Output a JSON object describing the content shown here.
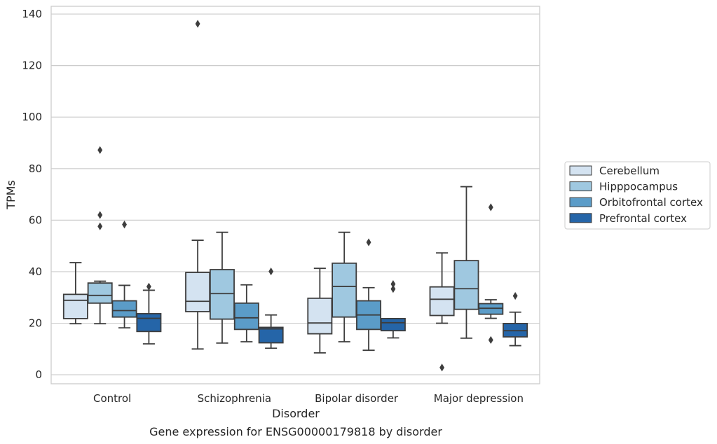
{
  "chart_data": {
    "type": "box",
    "xlabel": "Disorder",
    "ylabel": "TPMs",
    "caption": "Gene expression for ENSG00000179818 by disorder",
    "ylim": [
      -3.5,
      143
    ],
    "yticks": [
      0,
      20,
      40,
      60,
      80,
      100,
      120,
      140
    ],
    "grid": "horizontal",
    "legend_position": "right",
    "categories": [
      "Control",
      "Schizophrenia",
      "Bipolar disorder",
      "Major depression"
    ],
    "series": [
      {
        "name": "Cerebellum",
        "color": "#d4e3f1",
        "boxes": [
          {
            "whislo": 19.8,
            "q1": 21.8,
            "med": 28.9,
            "q3": 31.2,
            "whishi": 43.5,
            "fliers": []
          },
          {
            "whislo": 10.0,
            "q1": 24.5,
            "med": 28.5,
            "q3": 39.7,
            "whishi": 52.2,
            "fliers": [
              136.2
            ]
          },
          {
            "whislo": 8.5,
            "q1": 15.9,
            "med": 20.1,
            "q3": 29.7,
            "whishi": 41.3,
            "fliers": []
          },
          {
            "whislo": 20.0,
            "q1": 23.0,
            "med": 29.3,
            "q3": 34.1,
            "whishi": 47.3,
            "fliers": [
              2.8
            ]
          }
        ]
      },
      {
        "name": "Hipppocampus",
        "color": "#9fc8e0",
        "boxes": [
          {
            "whislo": 19.8,
            "q1": 27.8,
            "med": 30.8,
            "q3": 35.6,
            "whishi": 36.3,
            "fliers": [
              87.2,
              62.0,
              57.6
            ]
          },
          {
            "whislo": 12.3,
            "q1": 21.6,
            "med": 31.5,
            "q3": 40.8,
            "whishi": 55.3,
            "fliers": []
          },
          {
            "whislo": 12.8,
            "q1": 22.4,
            "med": 34.3,
            "q3": 43.3,
            "whishi": 55.3,
            "fliers": []
          },
          {
            "whislo": 14.2,
            "q1": 25.4,
            "med": 33.4,
            "q3": 44.3,
            "whishi": 73.0,
            "fliers": []
          }
        ]
      },
      {
        "name": "Orbitofrontal cortex",
        "color": "#5b9cc8",
        "boxes": [
          {
            "whislo": 18.2,
            "q1": 22.4,
            "med": 24.9,
            "q3": 28.7,
            "whishi": 34.7,
            "fliers": [
              58.3
            ]
          },
          {
            "whislo": 12.8,
            "q1": 17.6,
            "med": 22.1,
            "q3": 27.8,
            "whishi": 34.9,
            "fliers": []
          },
          {
            "whislo": 9.5,
            "q1": 17.6,
            "med": 23.2,
            "q3": 28.7,
            "whishi": 33.8,
            "fliers": [
              51.4
            ]
          },
          {
            "whislo": 21.9,
            "q1": 23.5,
            "med": 25.8,
            "q3": 27.6,
            "whishi": 29.1,
            "fliers": [
              65.0,
              13.5
            ]
          }
        ]
      },
      {
        "name": "Prefrontal cortex",
        "color": "#2565a8",
        "boxes": [
          {
            "whislo": 12.0,
            "q1": 16.8,
            "med": 21.9,
            "q3": 23.7,
            "whishi": 32.8,
            "fliers": [
              34.2
            ]
          },
          {
            "whislo": 10.3,
            "q1": 12.4,
            "med": 17.8,
            "q3": 18.4,
            "whishi": 23.2,
            "fliers": [
              40.1
            ]
          },
          {
            "whislo": 14.3,
            "q1": 17.1,
            "med": 20.2,
            "q3": 21.8,
            "whishi": 21.8,
            "fliers": [
              35.2,
              33.3
            ]
          },
          {
            "whislo": 11.3,
            "q1": 14.7,
            "med": 17.1,
            "q3": 19.9,
            "whishi": 24.3,
            "fliers": [
              30.6
            ]
          }
        ]
      }
    ]
  }
}
